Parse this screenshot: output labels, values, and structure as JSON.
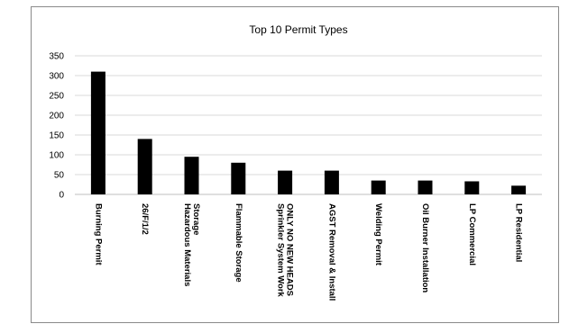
{
  "chart_data": {
    "type": "bar",
    "title": "Top 10 Permit Types",
    "categories": [
      [
        "Burning Permit"
      ],
      [
        "26/F/1/2"
      ],
      [
        "Hazardous Materials",
        "Storage"
      ],
      [
        "Flammable Storage"
      ],
      [
        "Sprinkler System Work",
        "ONLY NO NEW HEADS"
      ],
      [
        "AGST Removal & Install"
      ],
      [
        "Welding Permit"
      ],
      [
        "Oil Burner Installation"
      ],
      [
        "LP Commercial"
      ],
      [
        "LP Residential"
      ]
    ],
    "values": [
      310,
      140,
      95,
      80,
      60,
      60,
      35,
      35,
      33,
      22
    ],
    "ylim": [
      0,
      350
    ],
    "yticks": [
      0,
      50,
      100,
      150,
      200,
      250,
      300,
      350
    ],
    "grid": true,
    "legend": "none",
    "bar_color": "#000000",
    "grid_color": "#d9d9d9"
  }
}
